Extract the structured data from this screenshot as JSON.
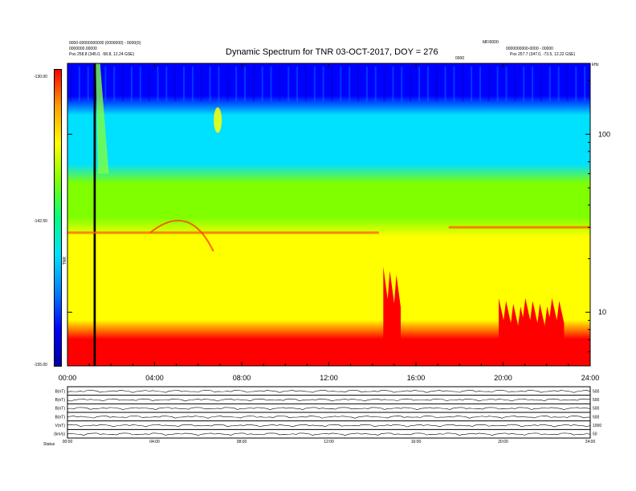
{
  "header": {
    "title": "Dynamic Spectrum for TNR 03-OCT-2017, DOY = 276",
    "left_line1": "0000-00000000000 (0000000) - 0000(0)",
    "left_line2": "0000000.00000",
    "left_line3": "Pos 258.8 (345.0, -58.8, 12.24 GSE)",
    "right_line1": "MFI0000",
    "right_line2": "0000000000-0000 - 00000",
    "right_line3": "Pos 257.7 (347.0, -73.5, 12.22 GSE)",
    "center_small": "0000",
    "corner_small": "kHz"
  },
  "colorbar": {
    "top_label": "-130.00",
    "mid_label": "-142.50",
    "bottom_label": "-155.00",
    "unit_label": "TNR",
    "colors": [
      "#0000a0",
      "#0000ff",
      "#0080ff",
      "#00e0ff",
      "#00ff80",
      "#80ff00",
      "#ffff00",
      "#ffa000",
      "#ff0000"
    ]
  },
  "chart_data": {
    "type": "heatmap",
    "title": "Dynamic Spectrum for TNR 03-OCT-2017, DOY = 276",
    "x": {
      "ticks": [
        "00:00",
        "04:00",
        "08:00",
        "12:00",
        "16:00",
        "20:00",
        "24:00"
      ],
      "hours": [
        0,
        4,
        8,
        12,
        16,
        20,
        24
      ],
      "range": [
        0,
        24
      ]
    },
    "y": {
      "scale": "log",
      "ticks": [
        100,
        10
      ],
      "range": [
        5,
        250
      ],
      "unit": "kHz"
    },
    "z": {
      "range": [
        -155.0,
        -130.0
      ],
      "labels": [
        "-130.00",
        "-142.50",
        "-155.00"
      ]
    },
    "bands": [
      {
        "from_khz": 145,
        "to_khz": 250,
        "color": "#0000ff"
      },
      {
        "from_khz": 60,
        "to_khz": 145,
        "color": "#00e0ff"
      },
      {
        "from_khz": 30,
        "to_khz": 60,
        "color": "#80ff00"
      },
      {
        "from_khz": 8,
        "to_khz": 30,
        "color": "#ffff00"
      },
      {
        "from_khz": 5,
        "to_khz": 8,
        "color": "#ff0000"
      }
    ],
    "features": [
      {
        "type": "data-gap",
        "start_hour": 1.2,
        "end_hour": 1.3,
        "color": "#000000"
      },
      {
        "type": "emission",
        "start_hour": 14.5,
        "end_hour": 15.3,
        "from_khz": 5,
        "to_khz": 18,
        "color": "#ff0000"
      },
      {
        "type": "emission",
        "start_hour": 19.8,
        "end_hour": 22.8,
        "from_khz": 5,
        "to_khz": 12,
        "color": "#ff0000"
      },
      {
        "type": "band-edge",
        "start_hour": 0,
        "end_hour": 14.3,
        "khz": 28,
        "color": "#ff6000"
      },
      {
        "type": "band-edge",
        "start_hour": 17.5,
        "end_hour": 24,
        "khz": 30,
        "color": "#ff6000"
      }
    ]
  },
  "lower_panels": {
    "left_labels": [
      "B(nT)",
      "B(nT)",
      "B(nT)",
      "B(nT)",
      "V(nT)",
      "(km/s)"
    ],
    "right_labels": [
      "500",
      "500",
      "500",
      "500",
      "1000",
      "50"
    ],
    "x_ticks": [
      "00:00",
      "04:00",
      "08:00",
      "12:00",
      "16:00",
      "20:00",
      "24:00"
    ],
    "footer": "Status"
  }
}
